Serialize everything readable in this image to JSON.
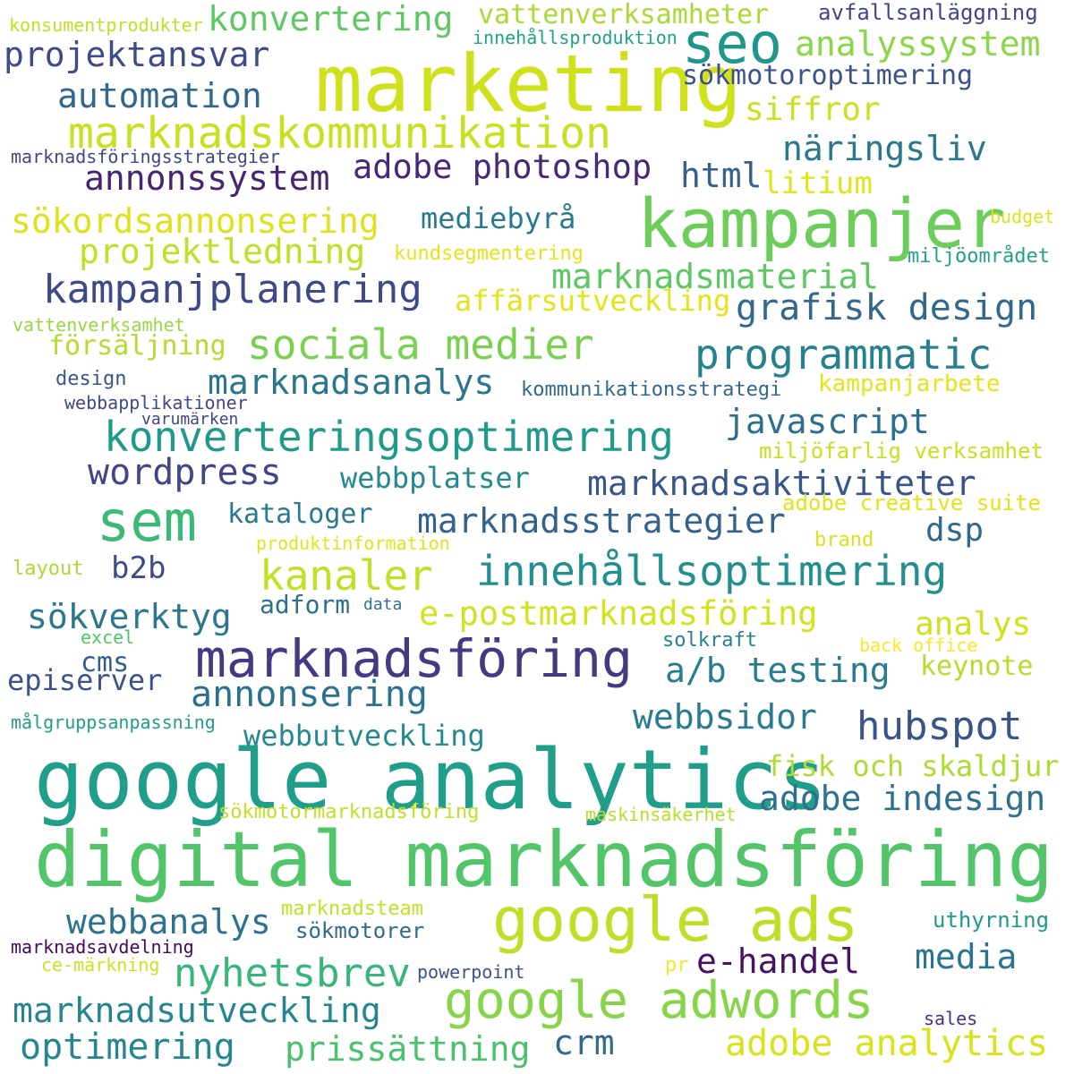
{
  "words": [
    {
      "text": "digital marknadsföring",
      "color": "#52c569"
    },
    {
      "text": "google analytics",
      "color": "#1f9e89"
    },
    {
      "text": "marketing",
      "color": "#d0e11c"
    },
    {
      "text": "kampanjer",
      "color": "#6ccd5a"
    },
    {
      "text": "google ads",
      "color": "#bddf26"
    },
    {
      "text": "seo",
      "color": "#1f968b"
    },
    {
      "text": "marknadsföring",
      "color": "#443983"
    },
    {
      "text": "google adwords",
      "color": "#86d549"
    },
    {
      "text": "sem",
      "color": "#3aba76"
    },
    {
      "text": "marknadskommunikation",
      "color": "#c8e020"
    },
    {
      "text": "konverteringsoptimering",
      "color": "#1f9a8a"
    },
    {
      "text": "sociala medier",
      "color": "#7ad151"
    },
    {
      "text": "kanaler",
      "color": "#c2df23"
    },
    {
      "text": "innehållsoptimering",
      "color": "#218f8d"
    },
    {
      "text": "programmatic",
      "color": "#26818e"
    },
    {
      "text": "kampanjplanering",
      "color": "#3e4989"
    },
    {
      "text": "nyhetsbrev",
      "color": "#35b779"
    },
    {
      "text": "hubspot",
      "color": "#3b528b"
    },
    {
      "text": "annonsering",
      "color": "#2c728e"
    },
    {
      "text": "wordpress",
      "color": "#404688"
    },
    {
      "text": "sökordsannonsering",
      "color": "#dde318"
    },
    {
      "text": "projektledning",
      "color": "#c0df25"
    },
    {
      "text": "grafisk design",
      "color": "#31688e"
    },
    {
      "text": "a/b testing",
      "color": "#287c8e"
    },
    {
      "text": "webbsidor",
      "color": "#297b8e"
    },
    {
      "text": "adobe analytics",
      "color": "#dae319"
    },
    {
      "text": "e-handel",
      "color": "#471164"
    },
    {
      "text": "marknadsstrategier",
      "color": "#33638d"
    },
    {
      "text": "marknadsanalys",
      "color": "#2a768e"
    },
    {
      "text": "konvertering",
      "color": "#5ec962"
    },
    {
      "text": "marknadsutveckling",
      "color": "#25858e"
    },
    {
      "text": "optimering",
      "color": "#24878e"
    },
    {
      "text": "prissättning",
      "color": "#4ac16d"
    },
    {
      "text": "adobe indesign",
      "color": "#2d718e"
    },
    {
      "text": "javascript",
      "color": "#2e6e8e"
    },
    {
      "text": "marknadsaktiviteter",
      "color": "#39568c"
    },
    {
      "text": "webbanalys",
      "color": "#2c728e"
    },
    {
      "text": "e-postmarknadsföring",
      "color": "#d2e21b"
    },
    {
      "text": "projektansvar",
      "color": "#3e4a89"
    },
    {
      "text": "automation",
      "color": "#31678e"
    },
    {
      "text": "analyssystem",
      "color": "#8bd646"
    },
    {
      "text": "adobe photoshop",
      "color": "#482979"
    },
    {
      "text": "annonssystem",
      "color": "#482475"
    },
    {
      "text": "näringsliv",
      "color": "#2a778e"
    },
    {
      "text": "marknadsmaterial",
      "color": "#5cc863"
    },
    {
      "text": "html",
      "color": "#355f8d"
    },
    {
      "text": "crm",
      "color": "#31688e"
    },
    {
      "text": "media",
      "color": "#2b748e"
    },
    {
      "text": "sökverktyg",
      "color": "#2a778e"
    },
    {
      "text": "vattenverksamheter",
      "color": "#a8db34"
    },
    {
      "text": "siffror",
      "color": "#cae11f"
    },
    {
      "text": "litium",
      "color": "#e2e418"
    },
    {
      "text": "mediebyrå",
      "color": "#29798e"
    },
    {
      "text": "affärsutveckling",
      "color": "#e5e419"
    },
    {
      "text": "försäljning",
      "color": "#b2dd2d"
    },
    {
      "text": "kataloger",
      "color": "#2a788e"
    },
    {
      "text": "b2b",
      "color": "#3e4c8a"
    },
    {
      "text": "adform",
      "color": "#2e6f8e"
    },
    {
      "text": "cms",
      "color": "#375b8d"
    },
    {
      "text": "episerver",
      "color": "#3b528b"
    },
    {
      "text": "webbutveckling",
      "color": "#23898e"
    },
    {
      "text": "fisk och skaldjur",
      "color": "#addc30"
    },
    {
      "text": "dsp",
      "color": "#30698e"
    },
    {
      "text": "analys",
      "color": "#d0e11c"
    },
    {
      "text": "keynote",
      "color": "#b5de2b"
    },
    {
      "text": "webbplatser",
      "color": "#23898e"
    },
    {
      "text": "sökmotoroptimering",
      "color": "#3b528b"
    },
    {
      "text": "kampanjarbete",
      "color": "#e5e419"
    },
    {
      "text": "miljöfarlig verksamhet",
      "color": "#c8e020"
    },
    {
      "text": "adobe creative suite",
      "color": "#e2e418"
    },
    {
      "text": "sökmotorer",
      "color": "#2f6b8e"
    },
    {
      "text": "uthyrning",
      "color": "#1f9a8a"
    },
    {
      "text": "kommunikationsstrategi",
      "color": "#31688e"
    },
    {
      "text": "avfallsanläggning",
      "color": "#3f4788"
    },
    {
      "text": "innehållsproduktion",
      "color": "#1fa287"
    },
    {
      "text": "konsumentprodukter",
      "color": "#c2df23"
    },
    {
      "text": "marknadsföringsstrategier",
      "color": "#3e4989"
    },
    {
      "text": "budget",
      "color": "#dde318"
    },
    {
      "text": "kundsegmentering",
      "color": "#e5e419"
    },
    {
      "text": "miljöområdet",
      "color": "#20a386"
    },
    {
      "text": "vattenverksamhet",
      "color": "#95d840"
    },
    {
      "text": "design",
      "color": "#39568c"
    },
    {
      "text": "webbapplikationer",
      "color": "#3e4989"
    },
    {
      "text": "varumärken",
      "color": "#404387"
    },
    {
      "text": "produktinformation",
      "color": "#e2e418"
    },
    {
      "text": "brand",
      "color": "#d8e219"
    },
    {
      "text": "layout",
      "color": "#a8db34"
    },
    {
      "text": "data",
      "color": "#2c728e"
    },
    {
      "text": "excel",
      "color": "#52c569"
    },
    {
      "text": "solkraft",
      "color": "#26818e"
    },
    {
      "text": "back office",
      "color": "#fde725"
    },
    {
      "text": "målgruppsanpassning",
      "color": "#1f9e89"
    },
    {
      "text": "sökmotormarknadsföring",
      "color": "#c2df23"
    },
    {
      "text": "maskinsäkerhet",
      "color": "#b5de2b"
    },
    {
      "text": "marknadsteam",
      "color": "#c2df23"
    },
    {
      "text": "marknadsavdelning",
      "color": "#46085c"
    },
    {
      "text": "ce-märkning",
      "color": "#cae11f"
    },
    {
      "text": "powerpoint",
      "color": "#3b528b"
    },
    {
      "text": "pr",
      "color": "#fde725"
    },
    {
      "text": "sales",
      "color": "#46327e"
    }
  ]
}
